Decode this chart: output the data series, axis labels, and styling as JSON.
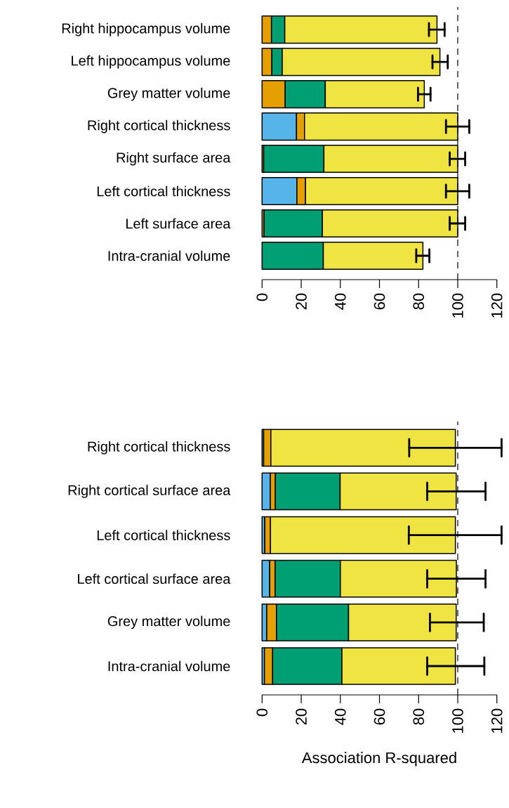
{
  "chart_data": [
    {
      "type": "bar",
      "orientation": "horizontal",
      "stacked": true,
      "categories": [
        "Right hippocampus volume",
        "Left hippocampus volume",
        "Grey matter volume",
        "Right cortical thickness",
        "Right surface area",
        "Left cortical thickness",
        "Left surface area",
        "Intra-cranial volume"
      ],
      "series": [
        {
          "color": "#56b4e9",
          "values": [
            null,
            null,
            null,
            17.6,
            null,
            17.8,
            null,
            null
          ]
        },
        {
          "color": "#e69f00",
          "values": [
            4.8,
            5.0,
            11.8,
            4.1,
            0.8,
            4.4,
            1.0,
            null
          ]
        },
        {
          "color": "#009e73",
          "values": [
            6.8,
            5.3,
            20.5,
            null,
            30.8,
            null,
            29.8,
            31.3
          ]
        },
        {
          "color": "#f0e442",
          "values": [
            77.8,
            80.6,
            50.6,
            78.3,
            68.4,
            77.8,
            69.2,
            50.9
          ],
          "errors": [
            [
              85.3,
              93.3
            ],
            [
              87.1,
              94.9
            ],
            [
              79.7,
              86.1
            ],
            [
              94.0,
              105.9
            ],
            [
              95.9,
              103.8
            ],
            [
              94.0,
              105.9
            ],
            [
              95.9,
              103.8
            ],
            [
              78.8,
              85.5
            ]
          ]
        }
      ],
      "xlim": [
        0,
        120
      ],
      "xticks": [
        0,
        20,
        40,
        60,
        80,
        100,
        120
      ],
      "ref_lines": [
        {
          "axis": "x",
          "value": 100,
          "line_style": "dashed",
          "color": "#000000"
        }
      ]
    },
    {
      "type": "bar",
      "orientation": "horizontal",
      "stacked": true,
      "categories": [
        "Right cortical thickness",
        "Right cortical surface area",
        "Left cortical thickness",
        "Left cortical surface area",
        "Grey matter volume",
        "Intra-cranial volume"
      ],
      "series": [
        {
          "color": "#56b4e9",
          "values": [
            0.8,
            4.2,
            1.4,
            3.9,
            2.4,
            1.2
          ]
        },
        {
          "color": "#e69f00",
          "values": [
            3.7,
            2.6,
            2.9,
            2.8,
            5.0,
            4.2
          ]
        },
        {
          "color": "#009e73",
          "values": [
            null,
            33.1,
            null,
            33.3,
            36.8,
            35.4
          ]
        },
        {
          "color": "#f0e442",
          "values": [
            94.3,
            59.3,
            94.5,
            59.3,
            55.0,
            58.0
          ],
          "errors": [
            [
              75.2,
              122.4
            ],
            [
              84.4,
              114.2
            ],
            [
              75.0,
              122.4
            ],
            [
              84.4,
              114.2
            ],
            [
              85.8,
              113.3
            ],
            [
              84.4,
              113.6
            ]
          ]
        }
      ],
      "xlim": [
        0,
        120
      ],
      "xticks": [
        0,
        20,
        40,
        60,
        80,
        100,
        120
      ],
      "xlabel": "Association R-squared",
      "ref_lines": [
        {
          "axis": "x",
          "value": 100,
          "line_style": "dashed",
          "color": "#000000"
        }
      ]
    }
  ]
}
